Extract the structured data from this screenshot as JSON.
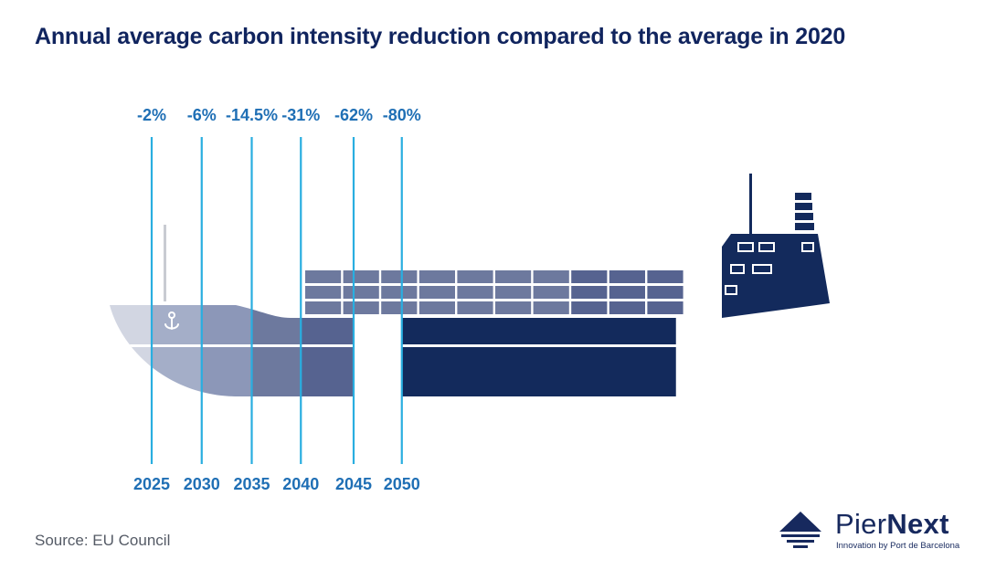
{
  "title": "Annual average carbon intensity reduction compared to the average in 2020",
  "source": "Source: EU Council",
  "logo": {
    "brand_prefix": "Pier",
    "brand_suffix": "Next",
    "tagline": "Innovation by Port de Barcelona"
  },
  "colors": {
    "title": "#10245e",
    "line": "#29aee0",
    "label": "#1f6fb5",
    "ship_dark": "#132a5c",
    "hull_stages": [
      "#d2d6e2",
      "#a4aec8",
      "#8c97b8",
      "#6d799e",
      "#566390"
    ]
  },
  "chart_data": {
    "type": "timeline",
    "title": "Annual average carbon intensity reduction compared to the average in 2020",
    "x": [
      "2025",
      "2030",
      "2035",
      "2040",
      "2045",
      "2050"
    ],
    "labels": [
      "-2%",
      "-6%",
      "-14.5%",
      "-31%",
      "-62%",
      "-80%"
    ],
    "values": [
      -2,
      -6,
      -14.5,
      -31,
      -62,
      -80
    ],
    "unit": "%",
    "xlabel": "",
    "ylabel": ""
  }
}
